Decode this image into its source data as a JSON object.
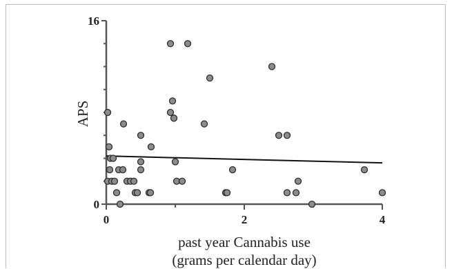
{
  "chart_data": {
    "type": "scatter",
    "xlabel_line1": "past year Cannabis use",
    "xlabel_line2": "(grams per calendar day)",
    "ylabel": "APS",
    "xlim": [
      0,
      4
    ],
    "ylim": [
      0,
      16
    ],
    "x_ticks": [
      0,
      2,
      4
    ],
    "y_ticks": [
      0,
      16
    ],
    "grid": false,
    "points": [
      [
        0.02,
        8
      ],
      [
        0.04,
        5
      ],
      [
        0.06,
        4
      ],
      [
        0.05,
        3
      ],
      [
        0.02,
        2
      ],
      [
        0.08,
        2
      ],
      [
        0.1,
        4
      ],
      [
        0.12,
        2
      ],
      [
        0.15,
        1
      ],
      [
        0.18,
        3
      ],
      [
        0.2,
        0
      ],
      [
        0.24,
        3
      ],
      [
        0.25,
        7
      ],
      [
        0.3,
        2
      ],
      [
        0.35,
        2
      ],
      [
        0.4,
        2
      ],
      [
        0.42,
        1
      ],
      [
        0.45,
        1
      ],
      [
        0.5,
        3
      ],
      [
        0.5,
        6
      ],
      [
        0.5,
        3.7
      ],
      [
        0.62,
        1
      ],
      [
        0.64,
        1
      ],
      [
        0.65,
        5
      ],
      [
        0.93,
        14
      ],
      [
        0.93,
        8
      ],
      [
        0.96,
        9
      ],
      [
        0.98,
        7.5
      ],
      [
        1.0,
        3.7
      ],
      [
        1.02,
        2
      ],
      [
        1.1,
        2
      ],
      [
        1.18,
        14
      ],
      [
        1.42,
        7
      ],
      [
        1.5,
        11
      ],
      [
        1.73,
        1
      ],
      [
        1.75,
        1
      ],
      [
        1.83,
        3
      ],
      [
        2.4,
        12
      ],
      [
        2.5,
        6
      ],
      [
        2.62,
        6
      ],
      [
        2.62,
        1
      ],
      [
        2.75,
        1
      ],
      [
        2.78,
        2
      ],
      [
        2.98,
        0
      ],
      [
        3.74,
        3
      ],
      [
        4.0,
        1
      ]
    ],
    "trendline": {
      "x": [
        0,
        4
      ],
      "y": [
        4.2,
        3.6
      ]
    },
    "colors": {
      "point_fill": "#8c8c8c",
      "point_stroke": "#2b2b2b",
      "axis": "#555555",
      "trendline": "#111111"
    }
  }
}
